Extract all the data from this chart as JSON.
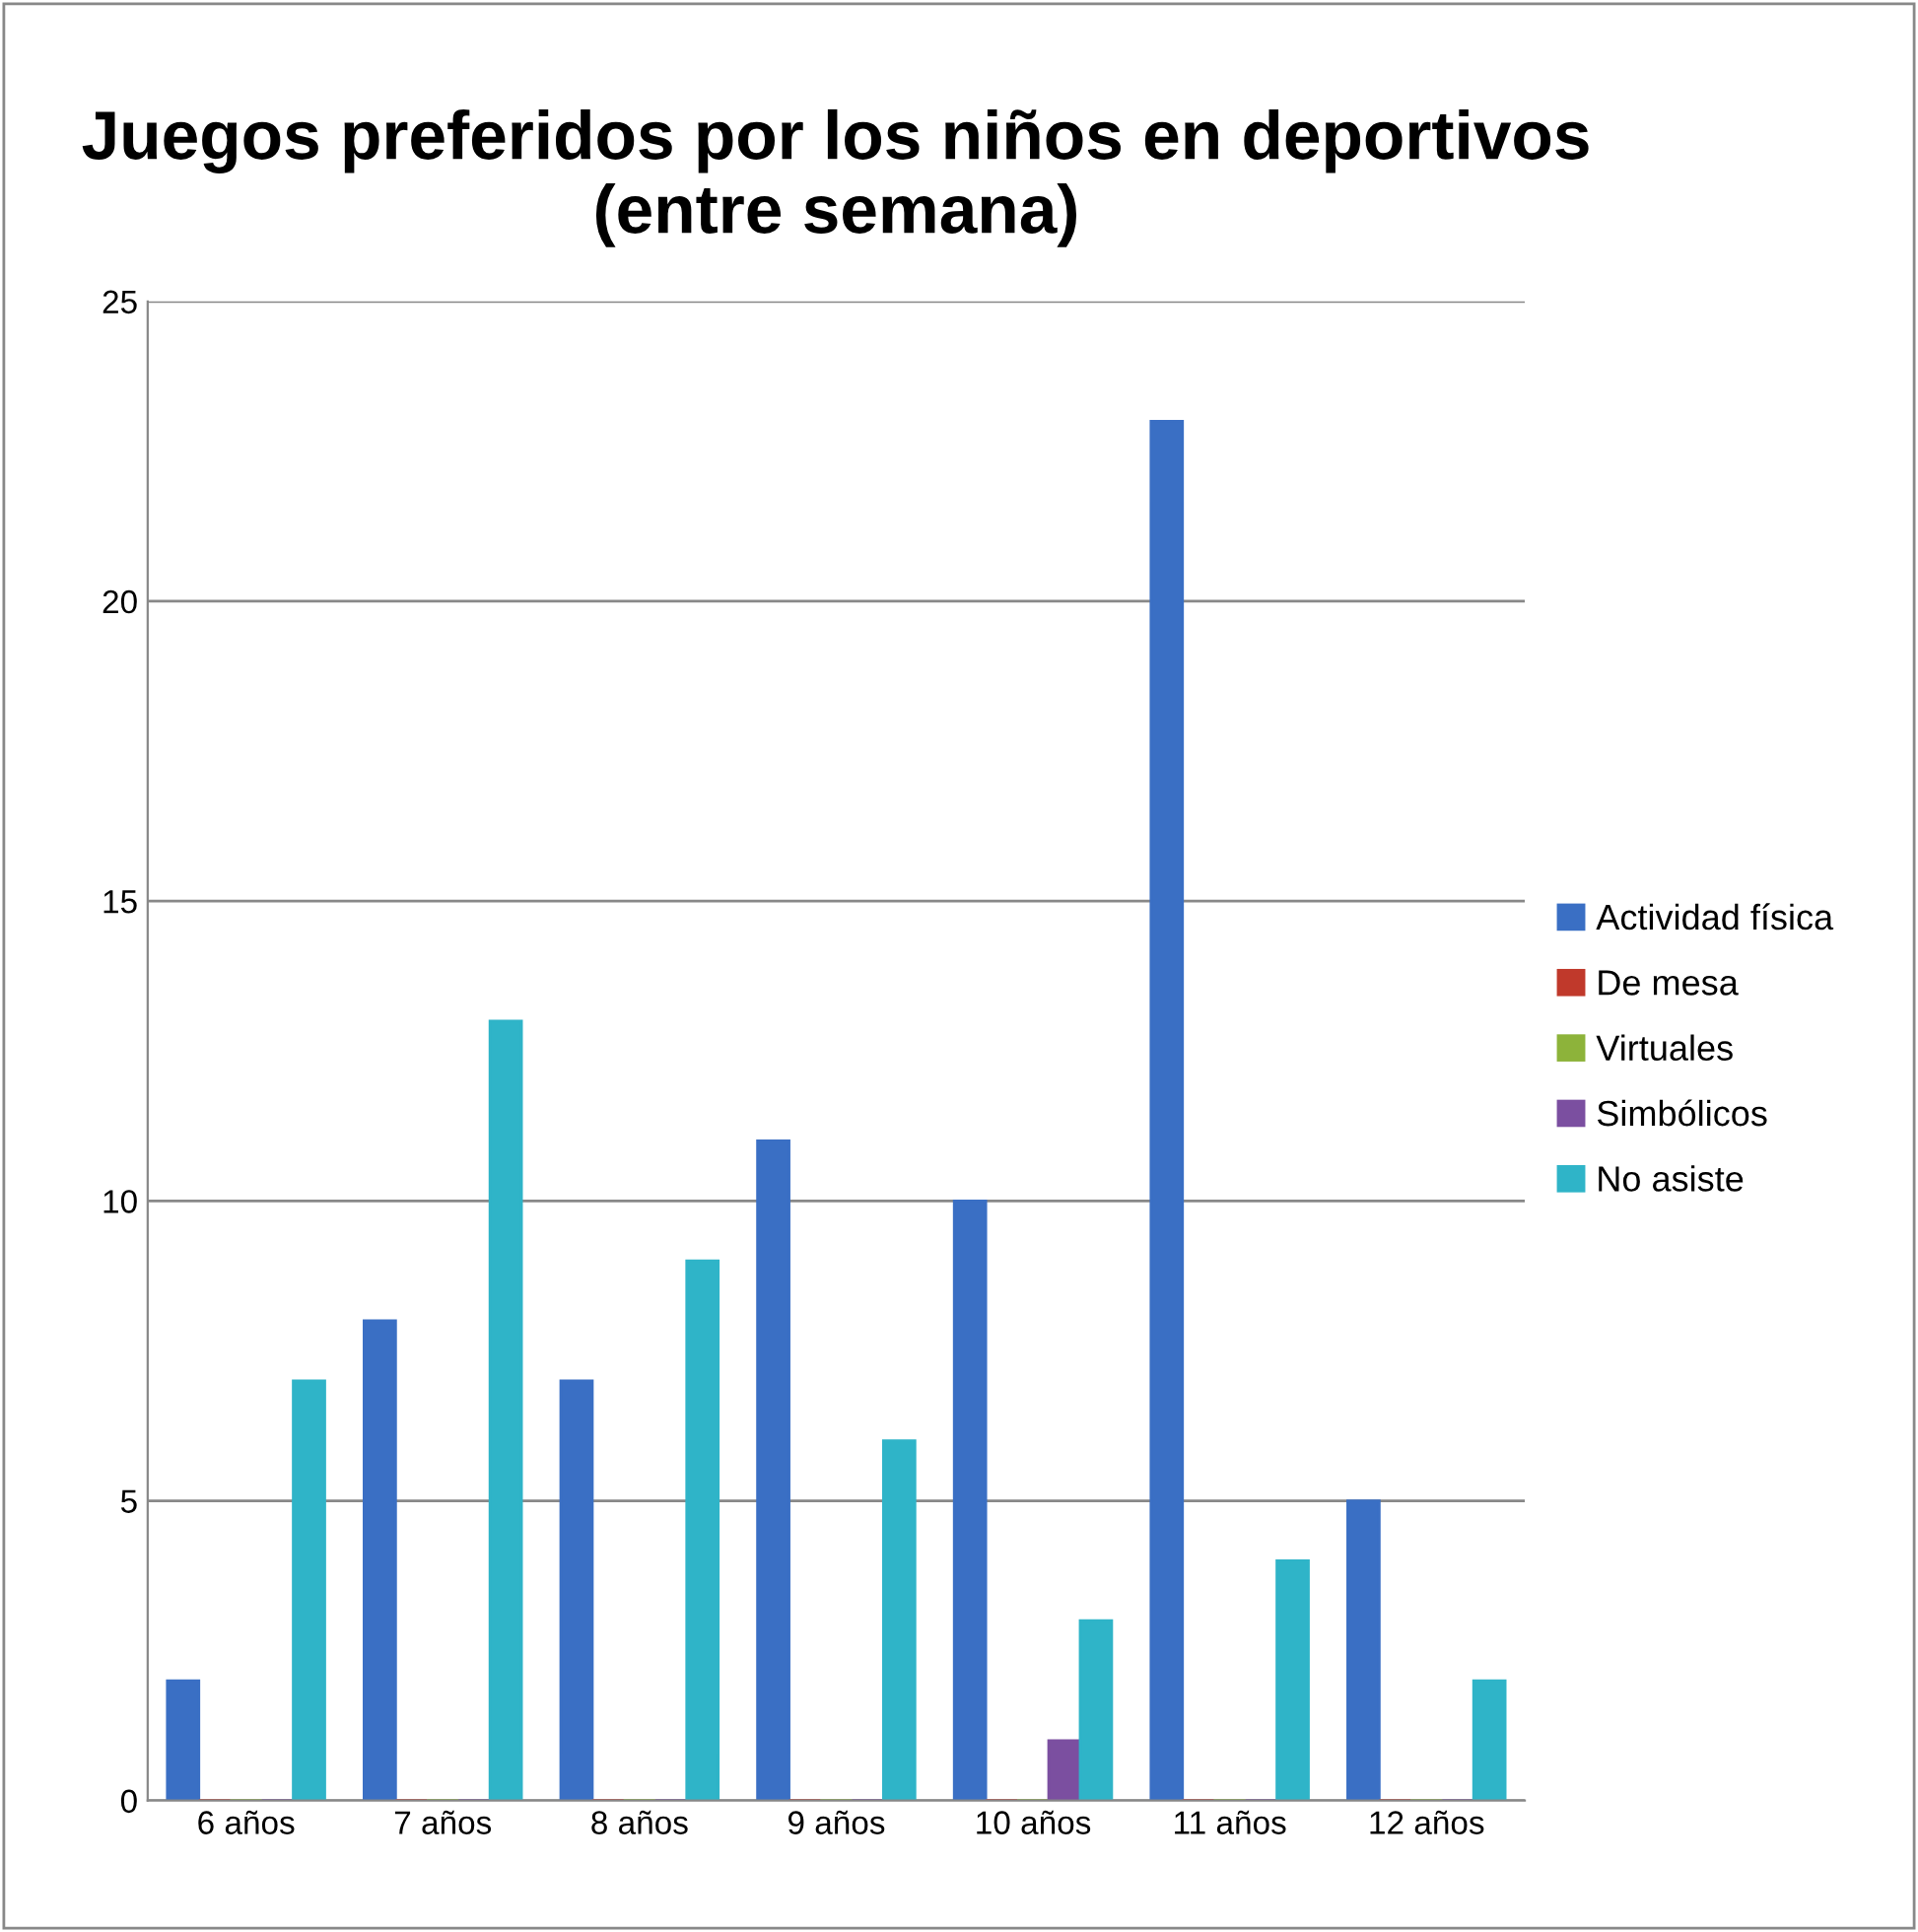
{
  "chart_data": {
    "type": "bar",
    "title": "Juegos preferidos por los niños en deportivos\n(entre semana)",
    "categories": [
      "6 años",
      "7 años",
      "8 años",
      "9 años",
      "10 años",
      "11 años",
      "12 años"
    ],
    "series": [
      {
        "name": "Actividad física",
        "color": "#3a6fc4",
        "values": [
          2,
          8,
          7,
          11,
          10,
          23,
          5
        ]
      },
      {
        "name": "De mesa",
        "color": "#c0392b",
        "values": [
          0,
          0,
          0,
          0,
          0,
          0,
          0
        ]
      },
      {
        "name": "Virtuales",
        "color": "#8db33a",
        "values": [
          0,
          0,
          0,
          0,
          0,
          0,
          0
        ]
      },
      {
        "name": "Simbólicos",
        "color": "#7b4fa0",
        "values": [
          0,
          0,
          0,
          0,
          1,
          0,
          0
        ]
      },
      {
        "name": "No asiste",
        "color": "#2fb4c8",
        "values": [
          7,
          13,
          9,
          6,
          3,
          4,
          2
        ]
      }
    ],
    "ylim": [
      0,
      25
    ],
    "yticks": [
      0,
      5,
      10,
      15,
      20,
      25
    ],
    "grid": "y",
    "legend": "right"
  }
}
